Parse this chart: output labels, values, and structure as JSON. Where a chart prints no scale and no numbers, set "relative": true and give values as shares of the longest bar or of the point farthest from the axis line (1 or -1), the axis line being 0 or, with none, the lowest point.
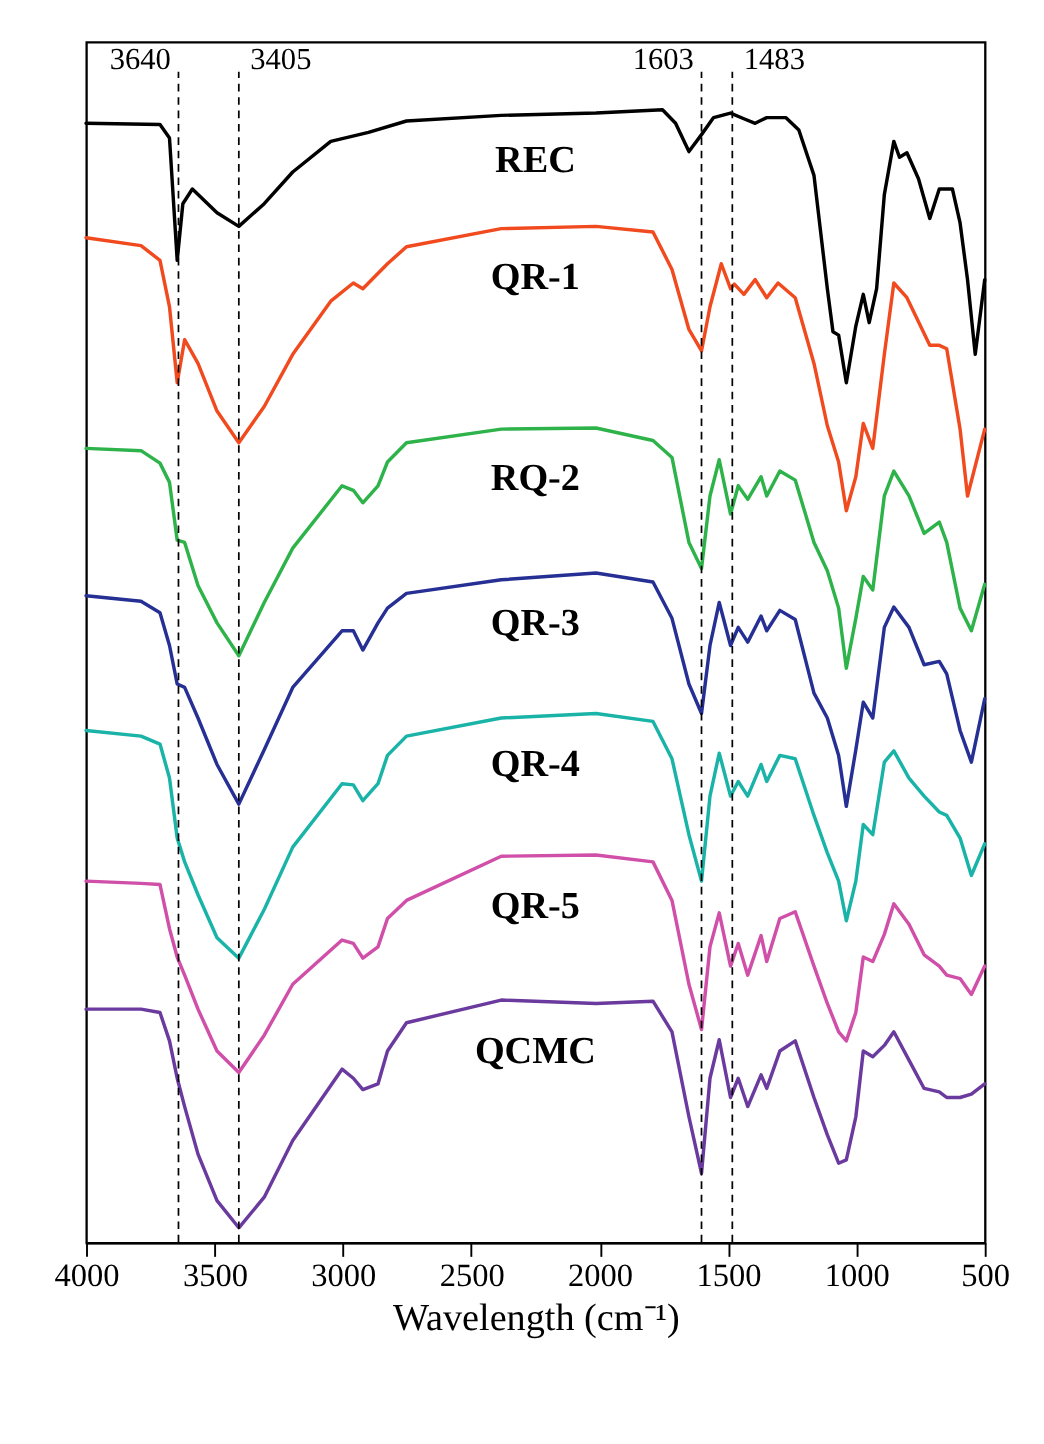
{
  "chart_data": {
    "type": "line",
    "relative": true,
    "xlabel": "Wavelength (cm⁻¹)",
    "xlim": [
      4000,
      500
    ],
    "xticks": [
      4000,
      3500,
      3000,
      2500,
      2000,
      1500,
      1000,
      500
    ],
    "ref_lines": [
      {
        "axis": "x",
        "value": 3640,
        "label": "3640",
        "line_style": "dashed",
        "color": "#000000"
      },
      {
        "axis": "x",
        "value": 3405,
        "label": "3405",
        "line_style": "dashed",
        "color": "#000000"
      },
      {
        "axis": "x",
        "value": 1603,
        "label": "1603",
        "line_style": "dashed",
        "color": "#000000"
      },
      {
        "axis": "x",
        "value": 1483,
        "label": "1483",
        "line_style": "dashed",
        "color": "#000000"
      }
    ],
    "series": [
      {
        "name": "REC",
        "color": "#000000",
        "x": [
          4000,
          3712,
          3675,
          3645,
          3623,
          3586,
          3490,
          3405,
          3306,
          3195,
          3047,
          2900,
          2752,
          2383,
          2014,
          1755,
          1704,
          1652,
          1603,
          1556,
          1490,
          1438,
          1394,
          1349,
          1275,
          1224,
          1165,
          1113,
          1091,
          1069,
          1039,
          1002,
          973,
          950,
          921,
          891,
          854,
          832,
          803,
          758,
          714,
          677,
          626,
          596,
          567,
          537,
          500
        ],
        "values": [
          0.988,
          0.987,
          0.975,
          0.867,
          0.917,
          0.93,
          0.909,
          0.897,
          0.917,
          0.945,
          0.972,
          0.98,
          0.99,
          0.995,
          0.997,
          1.0,
          0.988,
          0.963,
          0.978,
          0.993,
          0.997,
          0.992,
          0.988,
          0.993,
          0.993,
          0.982,
          0.942,
          0.842,
          0.804,
          0.801,
          0.759,
          0.809,
          0.837,
          0.812,
          0.842,
          0.925,
          0.972,
          0.958,
          0.962,
          0.939,
          0.904,
          0.93,
          0.93,
          0.9,
          0.85,
          0.784,
          0.85
        ]
      },
      {
        "name": "QR-1",
        "color": "#f04a1e",
        "x": [
          4000,
          3786,
          3712,
          3675,
          3645,
          3616,
          3564,
          3490,
          3405,
          3306,
          3195,
          3047,
          2959,
          2922,
          2826,
          2752,
          2383,
          2014,
          1792,
          1718,
          1652,
          1603,
          1570,
          1526,
          1490,
          1475,
          1438,
          1394,
          1349,
          1305,
          1238,
          1165,
          1113,
          1069,
          1039,
          1002,
          973,
          936,
          891,
          854,
          803,
          714,
          677,
          648,
          596,
          567,
          500
        ],
        "values": [
          0.887,
          0.88,
          0.867,
          0.826,
          0.759,
          0.797,
          0.776,
          0.734,
          0.706,
          0.738,
          0.784,
          0.831,
          0.847,
          0.842,
          0.864,
          0.879,
          0.895,
          0.897,
          0.892,
          0.859,
          0.806,
          0.787,
          0.826,
          0.864,
          0.842,
          0.846,
          0.837,
          0.85,
          0.834,
          0.847,
          0.834,
          0.776,
          0.721,
          0.689,
          0.646,
          0.676,
          0.723,
          0.701,
          0.784,
          0.847,
          0.834,
          0.792,
          0.792,
          0.789,
          0.718,
          0.659,
          0.718
        ]
      },
      {
        "name": "RQ-2",
        "color": "#2db34a",
        "x": [
          4000,
          3786,
          3712,
          3675,
          3645,
          3616,
          3564,
          3490,
          3405,
          3306,
          3195,
          3003,
          2959,
          2922,
          2863,
          2826,
          2752,
          2383,
          2014,
          1792,
          1718,
          1652,
          1603,
          1570,
          1534,
          1490,
          1460,
          1423,
          1371,
          1349,
          1298,
          1238,
          1165,
          1113,
          1069,
          1039,
          1002,
          973,
          936,
          891,
          854,
          795,
          736,
          677,
          648,
          596,
          552,
          500
        ],
        "values": [
          0.701,
          0.699,
          0.688,
          0.671,
          0.62,
          0.618,
          0.58,
          0.547,
          0.518,
          0.565,
          0.613,
          0.668,
          0.664,
          0.653,
          0.668,
          0.689,
          0.706,
          0.718,
          0.719,
          0.708,
          0.693,
          0.618,
          0.595,
          0.659,
          0.691,
          0.643,
          0.668,
          0.656,
          0.676,
          0.659,
          0.681,
          0.673,
          0.618,
          0.593,
          0.56,
          0.507,
          0.551,
          0.588,
          0.576,
          0.659,
          0.681,
          0.659,
          0.626,
          0.636,
          0.618,
          0.56,
          0.54,
          0.581
        ]
      },
      {
        "name": "QR-3",
        "color": "#262f94",
        "x": [
          4000,
          3786,
          3712,
          3675,
          3645,
          3616,
          3564,
          3490,
          3405,
          3306,
          3195,
          3003,
          2959,
          2922,
          2863,
          2826,
          2752,
          2383,
          2014,
          1792,
          1718,
          1652,
          1603,
          1570,
          1534,
          1490,
          1460,
          1423,
          1371,
          1349,
          1298,
          1238,
          1165,
          1113,
          1069,
          1039,
          1002,
          973,
          936,
          891,
          854,
          795,
          736,
          677,
          648,
          596,
          552,
          500
        ],
        "values": [
          0.571,
          0.566,
          0.556,
          0.527,
          0.493,
          0.49,
          0.463,
          0.422,
          0.387,
          0.435,
          0.49,
          0.54,
          0.54,
          0.523,
          0.547,
          0.56,
          0.573,
          0.585,
          0.591,
          0.583,
          0.551,
          0.493,
          0.467,
          0.527,
          0.565,
          0.527,
          0.543,
          0.53,
          0.553,
          0.54,
          0.558,
          0.55,
          0.485,
          0.463,
          0.43,
          0.385,
          0.435,
          0.477,
          0.463,
          0.543,
          0.561,
          0.543,
          0.51,
          0.513,
          0.502,
          0.452,
          0.424,
          0.48
        ]
      },
      {
        "name": "QR-4",
        "color": "#1ab3a8",
        "x": [
          4000,
          3786,
          3712,
          3675,
          3645,
          3616,
          3564,
          3490,
          3405,
          3306,
          3195,
          3003,
          2959,
          2922,
          2863,
          2826,
          2752,
          2383,
          2014,
          1792,
          1718,
          1652,
          1603,
          1570,
          1534,
          1490,
          1460,
          1423,
          1371,
          1349,
          1298,
          1238,
          1165,
          1113,
          1069,
          1039,
          1002,
          973,
          936,
          891,
          854,
          795,
          736,
          677,
          648,
          596,
          552,
          500
        ],
        "values": [
          0.452,
          0.447,
          0.44,
          0.41,
          0.357,
          0.336,
          0.307,
          0.269,
          0.251,
          0.294,
          0.349,
          0.405,
          0.404,
          0.39,
          0.405,
          0.43,
          0.447,
          0.463,
          0.467,
          0.46,
          0.427,
          0.36,
          0.319,
          0.394,
          0.432,
          0.394,
          0.407,
          0.394,
          0.422,
          0.407,
          0.43,
          0.427,
          0.377,
          0.344,
          0.319,
          0.284,
          0.319,
          0.369,
          0.36,
          0.424,
          0.434,
          0.41,
          0.394,
          0.38,
          0.377,
          0.357,
          0.324,
          0.352
        ]
      },
      {
        "name": "QR-5",
        "color": "#d04fa8",
        "x": [
          4000,
          3786,
          3712,
          3675,
          3645,
          3616,
          3564,
          3490,
          3405,
          3306,
          3195,
          3003,
          2959,
          2922,
          2863,
          2826,
          2752,
          2383,
          2014,
          1792,
          1718,
          1652,
          1603,
          1570,
          1534,
          1490,
          1460,
          1423,
          1371,
          1349,
          1298,
          1238,
          1165,
          1113,
          1069,
          1039,
          1002,
          973,
          936,
          891,
          854,
          795,
          736,
          677,
          648,
          596,
          552,
          500
        ],
        "values": [
          0.319,
          0.317,
          0.316,
          0.277,
          0.252,
          0.236,
          0.206,
          0.169,
          0.15,
          0.183,
          0.228,
          0.267,
          0.264,
          0.251,
          0.261,
          0.286,
          0.302,
          0.341,
          0.342,
          0.336,
          0.302,
          0.228,
          0.188,
          0.261,
          0.291,
          0.244,
          0.264,
          0.236,
          0.271,
          0.248,
          0.286,
          0.292,
          0.244,
          0.211,
          0.186,
          0.178,
          0.203,
          0.252,
          0.248,
          0.272,
          0.299,
          0.281,
          0.254,
          0.244,
          0.236,
          0.233,
          0.219,
          0.244
        ]
      },
      {
        "name": "QCMC",
        "color": "#6a3a9e",
        "x": [
          4000,
          3786,
          3712,
          3675,
          3645,
          3616,
          3564,
          3490,
          3405,
          3306,
          3195,
          3003,
          2959,
          2922,
          2863,
          2826,
          2752,
          2383,
          2014,
          1792,
          1718,
          1652,
          1603,
          1570,
          1534,
          1490,
          1460,
          1423,
          1371,
          1349,
          1298,
          1238,
          1165,
          1113,
          1069,
          1039,
          1002,
          973,
          936,
          891,
          854,
          795,
          736,
          677,
          648,
          596,
          552,
          500
        ],
        "values": [
          0.206,
          0.206,
          0.203,
          0.178,
          0.145,
          0.12,
          0.078,
          0.037,
          0.013,
          0.04,
          0.09,
          0.153,
          0.145,
          0.135,
          0.14,
          0.169,
          0.194,
          0.214,
          0.211,
          0.213,
          0.186,
          0.111,
          0.061,
          0.145,
          0.179,
          0.128,
          0.145,
          0.12,
          0.148,
          0.136,
          0.169,
          0.178,
          0.128,
          0.095,
          0.07,
          0.073,
          0.111,
          0.169,
          0.164,
          0.174,
          0.186,
          0.161,
          0.136,
          0.133,
          0.128,
          0.128,
          0.131,
          0.14
        ]
      }
    ]
  }
}
